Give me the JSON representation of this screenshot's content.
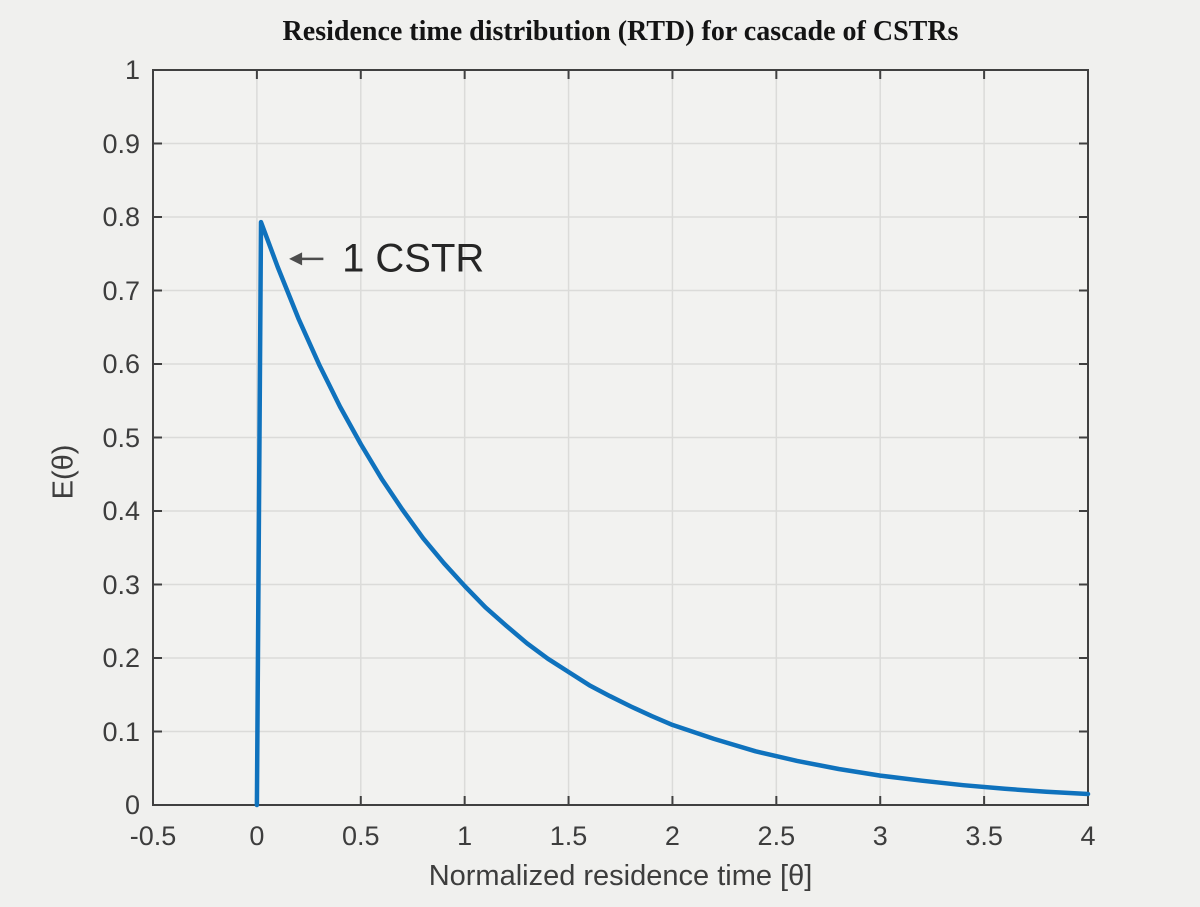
{
  "figure": {
    "background": "#f0f0ee",
    "plot_background": "#f2f2f0"
  },
  "chart_data": {
    "type": "line",
    "title": "Residence time distribution (RTD) for cascade of CSTRs",
    "xlabel": "Normalized residence time [θ]",
    "ylabel": "E(θ)",
    "xlim": [
      -0.5,
      4
    ],
    "ylim": [
      0,
      1
    ],
    "grid": true,
    "legend": "none",
    "xticks": [
      -0.5,
      0,
      0.5,
      1,
      1.5,
      2,
      2.5,
      3,
      3.5,
      4
    ],
    "xtick_labels": [
      "-0.5",
      "0",
      "0.5",
      "1",
      "1.5",
      "2",
      "2.5",
      "3",
      "3.5",
      "4"
    ],
    "yticks": [
      0,
      0.1,
      0.2,
      0.3,
      0.4,
      0.5,
      0.6,
      0.7,
      0.8,
      0.9,
      1
    ],
    "ytick_labels": [
      "0",
      "0.1",
      "0.2",
      "0.3",
      "0.4",
      "0.5",
      "0.6",
      "0.7",
      "0.8",
      "0.9",
      "1"
    ],
    "series": [
      {
        "name": "1 CSTR",
        "color": "#0f72bd",
        "line_width": 4.5,
        "x": [
          0,
          0.02,
          0.1,
          0.2,
          0.3,
          0.4,
          0.5,
          0.6,
          0.7,
          0.8,
          0.9,
          1.0,
          1.1,
          1.2,
          1.3,
          1.4,
          1.5,
          1.6,
          1.7,
          1.8,
          1.9,
          2.0,
          2.2,
          2.4,
          2.6,
          2.8,
          3.0,
          3.2,
          3.4,
          3.6,
          3.8,
          4.0
        ],
        "y": [
          0,
          0.793,
          0.732,
          0.662,
          0.599,
          0.542,
          0.491,
          0.444,
          0.402,
          0.363,
          0.329,
          0.298,
          0.269,
          0.244,
          0.22,
          0.199,
          0.181,
          0.163,
          0.148,
          0.134,
          0.121,
          0.109,
          0.09,
          0.073,
          0.06,
          0.049,
          0.04,
          0.033,
          0.027,
          0.022,
          0.018,
          0.015
        ]
      }
    ],
    "annotations": [
      {
        "text": "1 CSTR",
        "arrow_from_x": 0.32,
        "arrow_from_y": 0.743,
        "arrow_to_x": 0.155,
        "arrow_to_y": 0.743,
        "text_x": 0.41,
        "text_y": 0.742,
        "text_color": "#262626",
        "arrow_color": "#4d4d4d"
      }
    ],
    "colors": {
      "axis_box": "#404040",
      "grid": "#dbdbd9",
      "tick_text": "#3d3d3d",
      "title_text": "#141414"
    }
  }
}
